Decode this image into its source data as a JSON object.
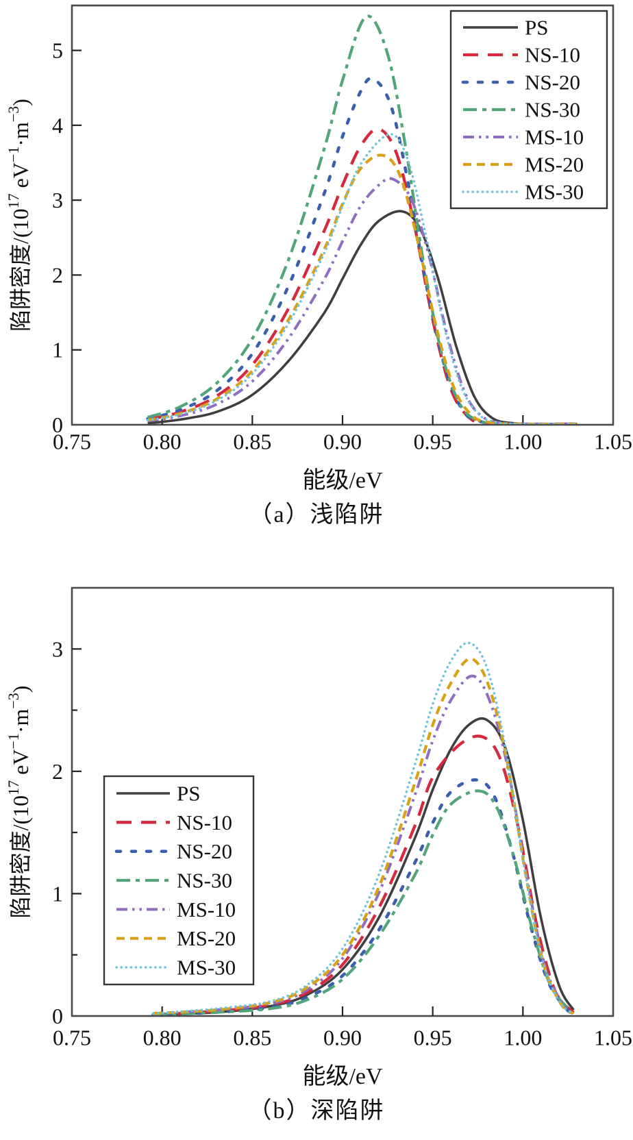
{
  "figure_title": "",
  "axis": {
    "x_label": "能级/eV",
    "y_label_full": "陷阱密度/(10^17 eV^-1·m^-3)",
    "y_label_parts": [
      {
        "t": "陷阱密度/(10"
      },
      {
        "t": "17",
        "sup": true
      },
      {
        "t": " eV"
      },
      {
        "t": "−1",
        "sup": true
      },
      {
        "t": "·m"
      },
      {
        "t": "−3",
        "sup": true
      },
      {
        "t": ")"
      }
    ]
  },
  "colors": {
    "PS": "#3f3f41",
    "NS-10": "#d7293d",
    "NS-20": "#3b5fae",
    "NS-30": "#52a579",
    "MS-10": "#8f6ec2",
    "MS-20": "#d8a118",
    "MS-30": "#70c3d9",
    "frame": "#4a4a4a"
  },
  "chart_data": [
    {
      "type": "line",
      "subtitle": "（a）浅陷阱",
      "xlabel": "能级/eV",
      "ylabel": "陷阱密度/(10^17 eV^-1·m^-3)",
      "xlim": [
        0.75,
        1.05
      ],
      "ylim": [
        0,
        5.6
      ],
      "xticks": [
        0.75,
        0.8,
        0.85,
        0.9,
        0.95,
        1.0,
        1.05
      ],
      "xtick_labels": [
        "0.75",
        "0.80",
        "0.85",
        "0.90",
        "0.95",
        "1.00",
        "1.05"
      ],
      "yticks": [
        0,
        1,
        2,
        3,
        4,
        5
      ],
      "ytick_labels": [
        "0",
        "1",
        "2",
        "3",
        "4",
        "5"
      ],
      "yticks_minor": [],
      "grid": false,
      "legend_position": "top-right",
      "series": [
        {
          "name": "PS",
          "points": [
            [
              0.792,
              0.02
            ],
            [
              0.81,
              0.07
            ],
            [
              0.83,
              0.17
            ],
            [
              0.85,
              0.4
            ],
            [
              0.87,
              0.85
            ],
            [
              0.89,
              1.5
            ],
            [
              0.9,
              1.95
            ],
            [
              0.91,
              2.4
            ],
            [
              0.92,
              2.72
            ],
            [
              0.933,
              2.85
            ],
            [
              0.943,
              2.62
            ],
            [
              0.953,
              1.95
            ],
            [
              0.963,
              1.05
            ],
            [
              0.973,
              0.38
            ],
            [
              0.983,
              0.09
            ],
            [
              0.995,
              0.02
            ],
            [
              1.01,
              0.01
            ],
            [
              1.03,
              0.01
            ]
          ]
        },
        {
          "name": "NS-10",
          "points": [
            [
              0.792,
              0.07
            ],
            [
              0.81,
              0.17
            ],
            [
              0.83,
              0.38
            ],
            [
              0.85,
              0.8
            ],
            [
              0.87,
              1.55
            ],
            [
              0.89,
              2.6
            ],
            [
              0.9,
              3.2
            ],
            [
              0.91,
              3.72
            ],
            [
              0.92,
              3.95
            ],
            [
              0.93,
              3.62
            ],
            [
              0.94,
              2.65
            ],
            [
              0.95,
              1.4
            ],
            [
              0.96,
              0.48
            ],
            [
              0.97,
              0.1
            ],
            [
              0.98,
              0.02
            ],
            [
              1.0,
              0.01
            ],
            [
              1.03,
              0.01
            ]
          ]
        },
        {
          "name": "NS-20",
          "points": [
            [
              0.792,
              0.08
            ],
            [
              0.81,
              0.2
            ],
            [
              0.83,
              0.45
            ],
            [
              0.85,
              0.95
            ],
            [
              0.87,
              1.85
            ],
            [
              0.89,
              3.1
            ],
            [
              0.9,
              3.85
            ],
            [
              0.91,
              4.45
            ],
            [
              0.917,
              4.62
            ],
            [
              0.927,
              4.25
            ],
            [
              0.937,
              3.15
            ],
            [
              0.947,
              1.8
            ],
            [
              0.957,
              0.75
            ],
            [
              0.967,
              0.18
            ],
            [
              0.977,
              0.04
            ],
            [
              0.99,
              0.01
            ],
            [
              1.03,
              0.01
            ]
          ]
        },
        {
          "name": "NS-30",
          "points": [
            [
              0.792,
              0.1
            ],
            [
              0.81,
              0.24
            ],
            [
              0.83,
              0.55
            ],
            [
              0.85,
              1.15
            ],
            [
              0.87,
              2.2
            ],
            [
              0.89,
              3.7
            ],
            [
              0.9,
              4.6
            ],
            [
              0.913,
              5.45
            ],
            [
              0.925,
              4.95
            ],
            [
              0.935,
              3.7
            ],
            [
              0.945,
              2.15
            ],
            [
              0.955,
              0.95
            ],
            [
              0.965,
              0.28
            ],
            [
              0.975,
              0.06
            ],
            [
              0.99,
              0.01
            ],
            [
              1.03,
              0.01
            ]
          ]
        },
        {
          "name": "MS-10",
          "points": [
            [
              0.792,
              0.05
            ],
            [
              0.81,
              0.12
            ],
            [
              0.83,
              0.27
            ],
            [
              0.85,
              0.58
            ],
            [
              0.87,
              1.15
            ],
            [
              0.89,
              1.95
            ],
            [
              0.9,
              2.45
            ],
            [
              0.91,
              2.92
            ],
            [
              0.92,
              3.2
            ],
            [
              0.928,
              3.28
            ],
            [
              0.938,
              3.02
            ],
            [
              0.948,
              2.25
            ],
            [
              0.958,
              1.2
            ],
            [
              0.968,
              0.42
            ],
            [
              0.978,
              0.1
            ],
            [
              0.99,
              0.02
            ],
            [
              1.01,
              0.01
            ],
            [
              1.03,
              0.01
            ]
          ]
        },
        {
          "name": "MS-20",
          "points": [
            [
              0.792,
              0.06
            ],
            [
              0.81,
              0.15
            ],
            [
              0.83,
              0.34
            ],
            [
              0.85,
              0.72
            ],
            [
              0.87,
              1.4
            ],
            [
              0.89,
              2.35
            ],
            [
              0.9,
              2.95
            ],
            [
              0.91,
              3.42
            ],
            [
              0.922,
              3.6
            ],
            [
              0.932,
              3.32
            ],
            [
              0.942,
              2.42
            ],
            [
              0.952,
              1.3
            ],
            [
              0.962,
              0.48
            ],
            [
              0.972,
              0.12
            ],
            [
              0.982,
              0.03
            ],
            [
              1.0,
              0.01
            ],
            [
              1.03,
              0.01
            ]
          ]
        },
        {
          "name": "MS-30",
          "points": [
            [
              0.792,
              0.06
            ],
            [
              0.81,
              0.14
            ],
            [
              0.83,
              0.32
            ],
            [
              0.85,
              0.68
            ],
            [
              0.87,
              1.35
            ],
            [
              0.89,
              2.3
            ],
            [
              0.9,
              2.92
            ],
            [
              0.91,
              3.48
            ],
            [
              0.926,
              3.88
            ],
            [
              0.936,
              3.55
            ],
            [
              0.946,
              2.55
            ],
            [
              0.956,
              1.35
            ],
            [
              0.966,
              0.5
            ],
            [
              0.976,
              0.13
            ],
            [
              0.986,
              0.03
            ],
            [
              1.0,
              0.01
            ],
            [
              1.03,
              0.01
            ]
          ]
        }
      ]
    },
    {
      "type": "line",
      "subtitle": "（b）深陷阱",
      "xlabel": "能级/eV",
      "ylabel": "陷阱密度/(10^17 eV^-1·m^-3)",
      "xlim": [
        0.75,
        1.05
      ],
      "ylim": [
        0,
        3.5
      ],
      "xticks": [
        0.75,
        0.8,
        0.85,
        0.9,
        0.95,
        1.0,
        1.05
      ],
      "xtick_labels": [
        "0.75",
        "0.80",
        "0.85",
        "0.90",
        "0.95",
        "1.00",
        "1.05"
      ],
      "yticks": [
        0,
        1,
        2,
        3
      ],
      "ytick_labels": [
        "0",
        "1",
        "2",
        "3"
      ],
      "yticks_minor": [
        0.5,
        1.5,
        2.5
      ],
      "grid": false,
      "legend_position": "middle-left",
      "series": [
        {
          "name": "PS",
          "points": [
            [
              0.795,
              0.01
            ],
            [
              0.83,
              0.03
            ],
            [
              0.86,
              0.08
            ],
            [
              0.88,
              0.17
            ],
            [
              0.9,
              0.38
            ],
            [
              0.92,
              0.8
            ],
            [
              0.94,
              1.45
            ],
            [
              0.95,
              1.85
            ],
            [
              0.96,
              2.18
            ],
            [
              0.97,
              2.38
            ],
            [
              0.98,
              2.42
            ],
            [
              0.99,
              2.2
            ],
            [
              1.0,
              1.6
            ],
            [
              1.01,
              0.8
            ],
            [
              1.02,
              0.25
            ],
            [
              1.028,
              0.05
            ]
          ]
        },
        {
          "name": "NS-10",
          "points": [
            [
              0.795,
              0.01
            ],
            [
              0.83,
              0.04
            ],
            [
              0.86,
              0.09
            ],
            [
              0.88,
              0.19
            ],
            [
              0.9,
              0.42
            ],
            [
              0.92,
              0.88
            ],
            [
              0.94,
              1.55
            ],
            [
              0.95,
              1.95
            ],
            [
              0.965,
              2.22
            ],
            [
              0.978,
              2.28
            ],
            [
              0.988,
              2.08
            ],
            [
              0.998,
              1.5
            ],
            [
              1.008,
              0.72
            ],
            [
              1.018,
              0.2
            ],
            [
              1.028,
              0.03
            ]
          ]
        },
        {
          "name": "NS-20",
          "points": [
            [
              0.795,
              0.01
            ],
            [
              0.83,
              0.03
            ],
            [
              0.86,
              0.07
            ],
            [
              0.88,
              0.15
            ],
            [
              0.9,
              0.33
            ],
            [
              0.92,
              0.7
            ],
            [
              0.94,
              1.25
            ],
            [
              0.95,
              1.58
            ],
            [
              0.96,
              1.83
            ],
            [
              0.974,
              1.93
            ],
            [
              0.984,
              1.8
            ],
            [
              0.994,
              1.35
            ],
            [
              1.004,
              0.75
            ],
            [
              1.014,
              0.28
            ],
            [
              1.024,
              0.06
            ],
            [
              1.028,
              0.02
            ]
          ]
        },
        {
          "name": "NS-30",
          "points": [
            [
              0.795,
              0.01
            ],
            [
              0.83,
              0.03
            ],
            [
              0.86,
              0.06
            ],
            [
              0.88,
              0.13
            ],
            [
              0.9,
              0.3
            ],
            [
              0.92,
              0.65
            ],
            [
              0.94,
              1.15
            ],
            [
              0.95,
              1.48
            ],
            [
              0.96,
              1.73
            ],
            [
              0.975,
              1.84
            ],
            [
              0.985,
              1.72
            ],
            [
              0.995,
              1.3
            ],
            [
              1.005,
              0.72
            ],
            [
              1.015,
              0.26
            ],
            [
              1.025,
              0.06
            ],
            [
              1.028,
              0.02
            ]
          ]
        },
        {
          "name": "MS-10",
          "points": [
            [
              0.795,
              0.02
            ],
            [
              0.83,
              0.05
            ],
            [
              0.86,
              0.1
            ],
            [
              0.88,
              0.21
            ],
            [
              0.9,
              0.47
            ],
            [
              0.92,
              1.0
            ],
            [
              0.94,
              1.8
            ],
            [
              0.95,
              2.25
            ],
            [
              0.96,
              2.58
            ],
            [
              0.972,
              2.78
            ],
            [
              0.982,
              2.56
            ],
            [
              0.992,
              2.0
            ],
            [
              1.002,
              1.15
            ],
            [
              1.012,
              0.42
            ],
            [
              1.022,
              0.1
            ],
            [
              1.028,
              0.02
            ]
          ]
        },
        {
          "name": "MS-20",
          "points": [
            [
              0.795,
              0.02
            ],
            [
              0.83,
              0.05
            ],
            [
              0.86,
              0.11
            ],
            [
              0.88,
              0.23
            ],
            [
              0.9,
              0.5
            ],
            [
              0.92,
              1.05
            ],
            [
              0.94,
              1.9
            ],
            [
              0.95,
              2.38
            ],
            [
              0.96,
              2.72
            ],
            [
              0.971,
              2.92
            ],
            [
              0.981,
              2.7
            ],
            [
              0.991,
              2.1
            ],
            [
              1.001,
              1.2
            ],
            [
              1.011,
              0.45
            ],
            [
              1.021,
              0.1
            ],
            [
              1.028,
              0.02
            ]
          ]
        },
        {
          "name": "MS-30",
          "points": [
            [
              0.795,
              0.02
            ],
            [
              0.83,
              0.06
            ],
            [
              0.86,
              0.12
            ],
            [
              0.88,
              0.25
            ],
            [
              0.9,
              0.55
            ],
            [
              0.92,
              1.15
            ],
            [
              0.94,
              2.05
            ],
            [
              0.95,
              2.55
            ],
            [
              0.96,
              2.9
            ],
            [
              0.97,
              3.05
            ],
            [
              0.98,
              2.85
            ],
            [
              0.99,
              2.22
            ],
            [
              1.0,
              1.28
            ],
            [
              1.01,
              0.5
            ],
            [
              1.02,
              0.12
            ],
            [
              1.028,
              0.02
            ]
          ]
        }
      ]
    }
  ],
  "legend_entries": [
    "PS",
    "NS-10",
    "NS-20",
    "NS-30",
    "MS-10",
    "MS-20",
    "MS-30"
  ]
}
